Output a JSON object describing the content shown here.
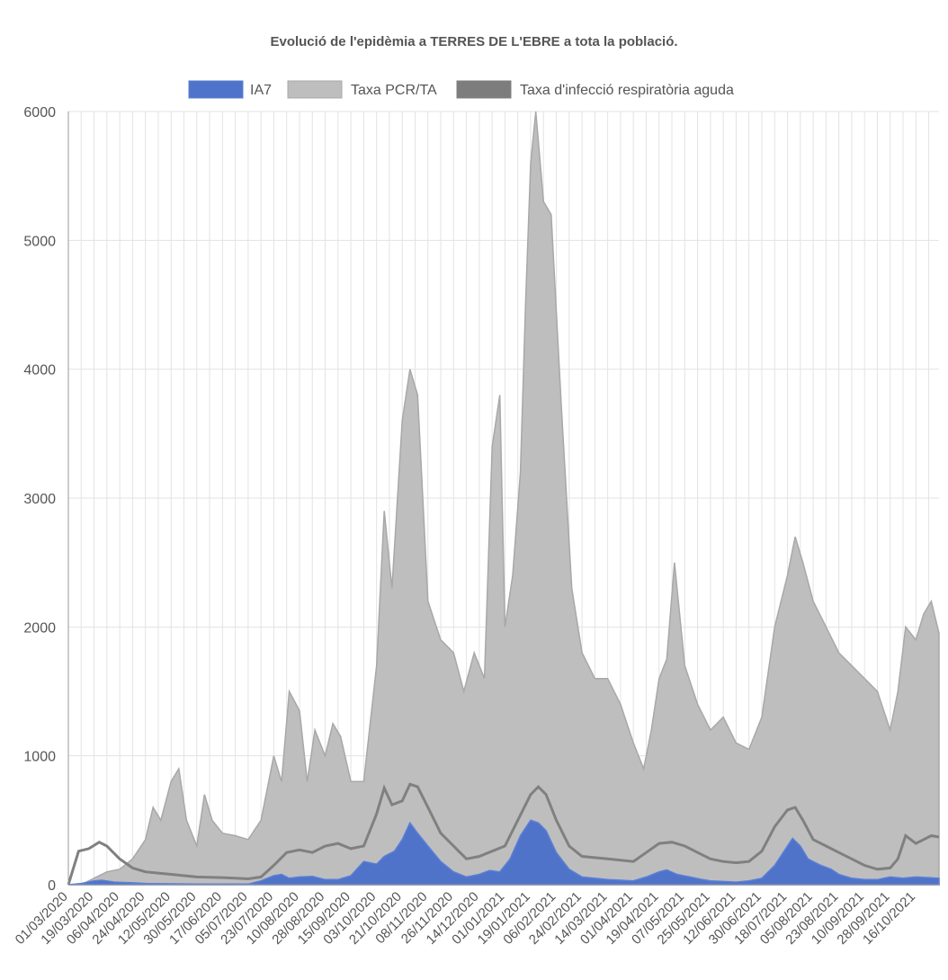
{
  "chart_data": {
    "type": "area",
    "title": "Evolució de l'epidèmia a TERRES DE L'EBRE a tota la població.",
    "xlabel": "",
    "ylabel": "",
    "ylim": [
      0,
      6000
    ],
    "yticks": [
      0,
      1000,
      2000,
      3000,
      4000,
      5000,
      6000
    ],
    "grid": true,
    "legend_position": "top",
    "categories": [
      "01/03/2020",
      "19/03/2020",
      "06/04/2020",
      "24/04/2020",
      "12/05/2020",
      "30/05/2020",
      "17/06/2020",
      "05/07/2020",
      "23/07/2020",
      "10/08/2020",
      "28/08/2020",
      "15/09/2020",
      "03/10/2020",
      "21/10/2020",
      "08/11/2020",
      "26/11/2020",
      "14/12/2020",
      "01/01/2021",
      "19/01/2021",
      "06/02/2021",
      "24/02/2021",
      "14/03/2021",
      "01/04/2021",
      "19/04/2021",
      "07/05/2021",
      "25/05/2021",
      "12/06/2021",
      "30/06/2021",
      "18/07/2021",
      "05/08/2021",
      "23/08/2021",
      "10/09/2021",
      "28/09/2021",
      "16/10/2021"
    ],
    "series": [
      {
        "name": "IA7",
        "color": "#5a7fd6",
        "fill": "#4f73c9",
        "points": [
          [
            0,
            0
          ],
          [
            0.5,
            10
          ],
          [
            1,
            30
          ],
          [
            1.3,
            35
          ],
          [
            1.8,
            20
          ],
          [
            2.5,
            15
          ],
          [
            3,
            10
          ],
          [
            5,
            5
          ],
          [
            7,
            5
          ],
          [
            7.5,
            30
          ],
          [
            8,
            70
          ],
          [
            8.3,
            80
          ],
          [
            8.6,
            50
          ],
          [
            9,
            60
          ],
          [
            9.5,
            65
          ],
          [
            10,
            40
          ],
          [
            10.5,
            40
          ],
          [
            11,
            70
          ],
          [
            11.5,
            180
          ],
          [
            12,
            160
          ],
          [
            12.3,
            220
          ],
          [
            12.7,
            260
          ],
          [
            13,
            350
          ],
          [
            13.3,
            480
          ],
          [
            13.6,
            400
          ],
          [
            14,
            300
          ],
          [
            14.5,
            180
          ],
          [
            15,
            100
          ],
          [
            15.5,
            60
          ],
          [
            16,
            80
          ],
          [
            16.4,
            110
          ],
          [
            16.8,
            100
          ],
          [
            17.2,
            200
          ],
          [
            17.6,
            380
          ],
          [
            18,
            500
          ],
          [
            18.3,
            480
          ],
          [
            18.6,
            420
          ],
          [
            19,
            250
          ],
          [
            19.5,
            120
          ],
          [
            20,
            60
          ],
          [
            21,
            40
          ],
          [
            22,
            30
          ],
          [
            22.5,
            60
          ],
          [
            23,
            100
          ],
          [
            23.3,
            115
          ],
          [
            23.7,
            80
          ],
          [
            24.2,
            60
          ],
          [
            24.7,
            40
          ],
          [
            25,
            30
          ],
          [
            25.5,
            25
          ],
          [
            26,
            20
          ],
          [
            26.5,
            30
          ],
          [
            27,
            50
          ],
          [
            27.5,
            150
          ],
          [
            28,
            300
          ],
          [
            28.2,
            360
          ],
          [
            28.5,
            300
          ],
          [
            28.8,
            200
          ],
          [
            29.3,
            150
          ],
          [
            29.7,
            120
          ],
          [
            30,
            80
          ],
          [
            30.5,
            50
          ],
          [
            31,
            40
          ],
          [
            31.5,
            40
          ],
          [
            32,
            60
          ],
          [
            32.5,
            50
          ],
          [
            33,
            60
          ],
          [
            33.5,
            55
          ],
          [
            33.9,
            50
          ]
        ]
      },
      {
        "name": "Taxa PCR/TA",
        "color": "#a8a8a8",
        "fill": "#bebebe",
        "points": [
          [
            0,
            0
          ],
          [
            0.5,
            0
          ],
          [
            1,
            50
          ],
          [
            1.5,
            100
          ],
          [
            2,
            120
          ],
          [
            2.5,
            200
          ],
          [
            3,
            350
          ],
          [
            3.3,
            600
          ],
          [
            3.6,
            500
          ],
          [
            4,
            800
          ],
          [
            4.3,
            900
          ],
          [
            4.6,
            500
          ],
          [
            5,
            300
          ],
          [
            5.3,
            700
          ],
          [
            5.6,
            500
          ],
          [
            6,
            400
          ],
          [
            6.5,
            380
          ],
          [
            7,
            350
          ],
          [
            7.5,
            500
          ],
          [
            8,
            1000
          ],
          [
            8.3,
            800
          ],
          [
            8.6,
            1500
          ],
          [
            9,
            1350
          ],
          [
            9.3,
            800
          ],
          [
            9.6,
            1200
          ],
          [
            10,
            1000
          ],
          [
            10.3,
            1250
          ],
          [
            10.6,
            1150
          ],
          [
            11,
            800
          ],
          [
            11.5,
            800
          ],
          [
            12,
            1700
          ],
          [
            12.3,
            2900
          ],
          [
            12.6,
            2300
          ],
          [
            13,
            3600
          ],
          [
            13.3,
            4000
          ],
          [
            13.6,
            3800
          ],
          [
            14,
            2200
          ],
          [
            14.5,
            1900
          ],
          [
            15,
            1800
          ],
          [
            15.4,
            1500
          ],
          [
            15.8,
            1800
          ],
          [
            16.2,
            1600
          ],
          [
            16.5,
            3400
          ],
          [
            16.8,
            3800
          ],
          [
            17,
            2000
          ],
          [
            17.3,
            2400
          ],
          [
            17.6,
            3200
          ],
          [
            17.8,
            4500
          ],
          [
            18,
            5600
          ],
          [
            18.2,
            6000
          ],
          [
            18.5,
            5300
          ],
          [
            18.8,
            5200
          ],
          [
            19.2,
            3700
          ],
          [
            19.6,
            2300
          ],
          [
            20,
            1800
          ],
          [
            20.5,
            1600
          ],
          [
            21,
            1600
          ],
          [
            21.5,
            1400
          ],
          [
            22,
            1100
          ],
          [
            22.4,
            900
          ],
          [
            22.7,
            1200
          ],
          [
            23,
            1600
          ],
          [
            23.3,
            1750
          ],
          [
            23.6,
            2500
          ],
          [
            24,
            1700
          ],
          [
            24.5,
            1400
          ],
          [
            25,
            1200
          ],
          [
            25.5,
            1300
          ],
          [
            26,
            1100
          ],
          [
            26.5,
            1050
          ],
          [
            27,
            1300
          ],
          [
            27.5,
            2000
          ],
          [
            28,
            2400
          ],
          [
            28.3,
            2700
          ],
          [
            28.6,
            2500
          ],
          [
            29,
            2200
          ],
          [
            29.5,
            2000
          ],
          [
            30,
            1800
          ],
          [
            30.5,
            1700
          ],
          [
            31,
            1600
          ],
          [
            31.5,
            1500
          ],
          [
            32,
            1200
          ],
          [
            32.3,
            1500
          ],
          [
            32.6,
            2000
          ],
          [
            33,
            1900
          ],
          [
            33.3,
            2100
          ],
          [
            33.6,
            2200
          ],
          [
            33.9,
            1950
          ]
        ]
      },
      {
        "name": "Taxa d'infecció respiratòria aguda",
        "color": "#808080",
        "fill": "#7d7d7d",
        "points": [
          [
            0,
            0
          ],
          [
            0.4,
            260
          ],
          [
            0.8,
            280
          ],
          [
            1.2,
            330
          ],
          [
            1.5,
            300
          ],
          [
            2,
            200
          ],
          [
            2.5,
            130
          ],
          [
            3,
            100
          ],
          [
            3.5,
            90
          ],
          [
            4,
            80
          ],
          [
            5,
            60
          ],
          [
            6,
            55
          ],
          [
            7,
            45
          ],
          [
            7.5,
            60
          ],
          [
            8,
            150
          ],
          [
            8.5,
            250
          ],
          [
            9,
            270
          ],
          [
            9.5,
            250
          ],
          [
            10,
            300
          ],
          [
            10.5,
            320
          ],
          [
            11,
            280
          ],
          [
            11.5,
            300
          ],
          [
            12,
            550
          ],
          [
            12.3,
            750
          ],
          [
            12.6,
            620
          ],
          [
            13,
            650
          ],
          [
            13.3,
            780
          ],
          [
            13.6,
            760
          ],
          [
            14,
            600
          ],
          [
            14.5,
            400
          ],
          [
            15,
            300
          ],
          [
            15.5,
            200
          ],
          [
            16,
            220
          ],
          [
            16.5,
            260
          ],
          [
            17,
            300
          ],
          [
            17.5,
            500
          ],
          [
            18,
            700
          ],
          [
            18.3,
            760
          ],
          [
            18.6,
            700
          ],
          [
            19,
            500
          ],
          [
            19.5,
            300
          ],
          [
            20,
            220
          ],
          [
            21,
            200
          ],
          [
            22,
            180
          ],
          [
            22.5,
            250
          ],
          [
            23,
            320
          ],
          [
            23.5,
            330
          ],
          [
            24,
            300
          ],
          [
            24.5,
            250
          ],
          [
            25,
            200
          ],
          [
            25.5,
            180
          ],
          [
            26,
            170
          ],
          [
            26.5,
            180
          ],
          [
            27,
            260
          ],
          [
            27.5,
            450
          ],
          [
            28,
            580
          ],
          [
            28.3,
            600
          ],
          [
            28.6,
            500
          ],
          [
            29,
            350
          ],
          [
            29.5,
            300
          ],
          [
            30,
            250
          ],
          [
            30.5,
            200
          ],
          [
            31,
            150
          ],
          [
            31.5,
            120
          ],
          [
            32,
            130
          ],
          [
            32.3,
            200
          ],
          [
            32.6,
            380
          ],
          [
            33,
            320
          ],
          [
            33.3,
            350
          ],
          [
            33.6,
            380
          ],
          [
            33.9,
            370
          ]
        ]
      }
    ]
  }
}
